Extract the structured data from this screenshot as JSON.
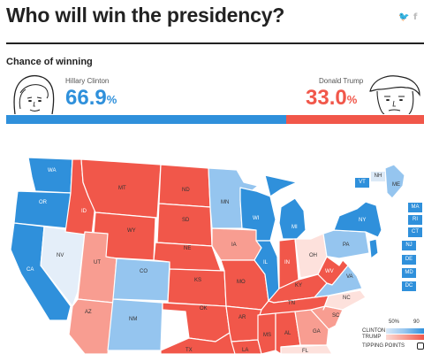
{
  "header": {
    "title": "Who will win the presidency?",
    "share_icons": [
      "twitter-icon",
      "facebook-icon"
    ],
    "twitter_glyph": "🐦",
    "facebook_glyph": "f"
  },
  "chance": {
    "label": "Chance of winning",
    "clinton": {
      "name": "Hillary Clinton",
      "pct": "66.9",
      "sign": "%",
      "value": 0.669,
      "color": "#2f90db"
    },
    "trump": {
      "name": "Donald Trump",
      "pct": "33.0",
      "sign": "%",
      "value": 0.33,
      "color": "#f1574a"
    }
  },
  "colors": {
    "dem_strong": "#2f90db",
    "dem_lean": "#95c5ef",
    "dem_tilt": "#e4eef9",
    "rep_strong": "#f1574a",
    "rep_lean": "#f89d91",
    "rep_tilt": "#fde1dc"
  },
  "states": {
    "WA": "WA",
    "OR": "OR",
    "CA": "CA",
    "NV": "NV",
    "ID": "ID",
    "MT": "MT",
    "WY": "WY",
    "UT": "UT",
    "AZ": "AZ",
    "CO": "CO",
    "NM": "NM",
    "ND": "ND",
    "SD": "SD",
    "NE": "NE",
    "KS": "KS",
    "OK": "OK",
    "TX": "TX",
    "MN": "MN",
    "IA": "IA",
    "MO": "MO",
    "AR": "AR",
    "LA": "LA",
    "WI": "WI",
    "IL": "IL",
    "MI": "MI",
    "IN": "IN",
    "OH": "OH",
    "KY": "KY",
    "TN": "TN",
    "MS": "MS",
    "AL": "AL",
    "GA": "GA",
    "FL": "FL",
    "SC": "SC",
    "NC": "NC",
    "VA": "VA",
    "WV": "WV",
    "PA": "PA",
    "NY": "NY",
    "ME": "ME",
    "VT": "VT",
    "NH": "NH",
    "MA": "MA",
    "RI": "RI",
    "CT": "CT",
    "NJ": "NJ",
    "DE": "DE",
    "MD": "MD",
    "DC": "DC"
  },
  "legend": {
    "pct50": "50%",
    "pct90": "90",
    "clinton": "CLINTON",
    "trump": "TRUMP",
    "tipping": "TIPPING POINTS"
  }
}
